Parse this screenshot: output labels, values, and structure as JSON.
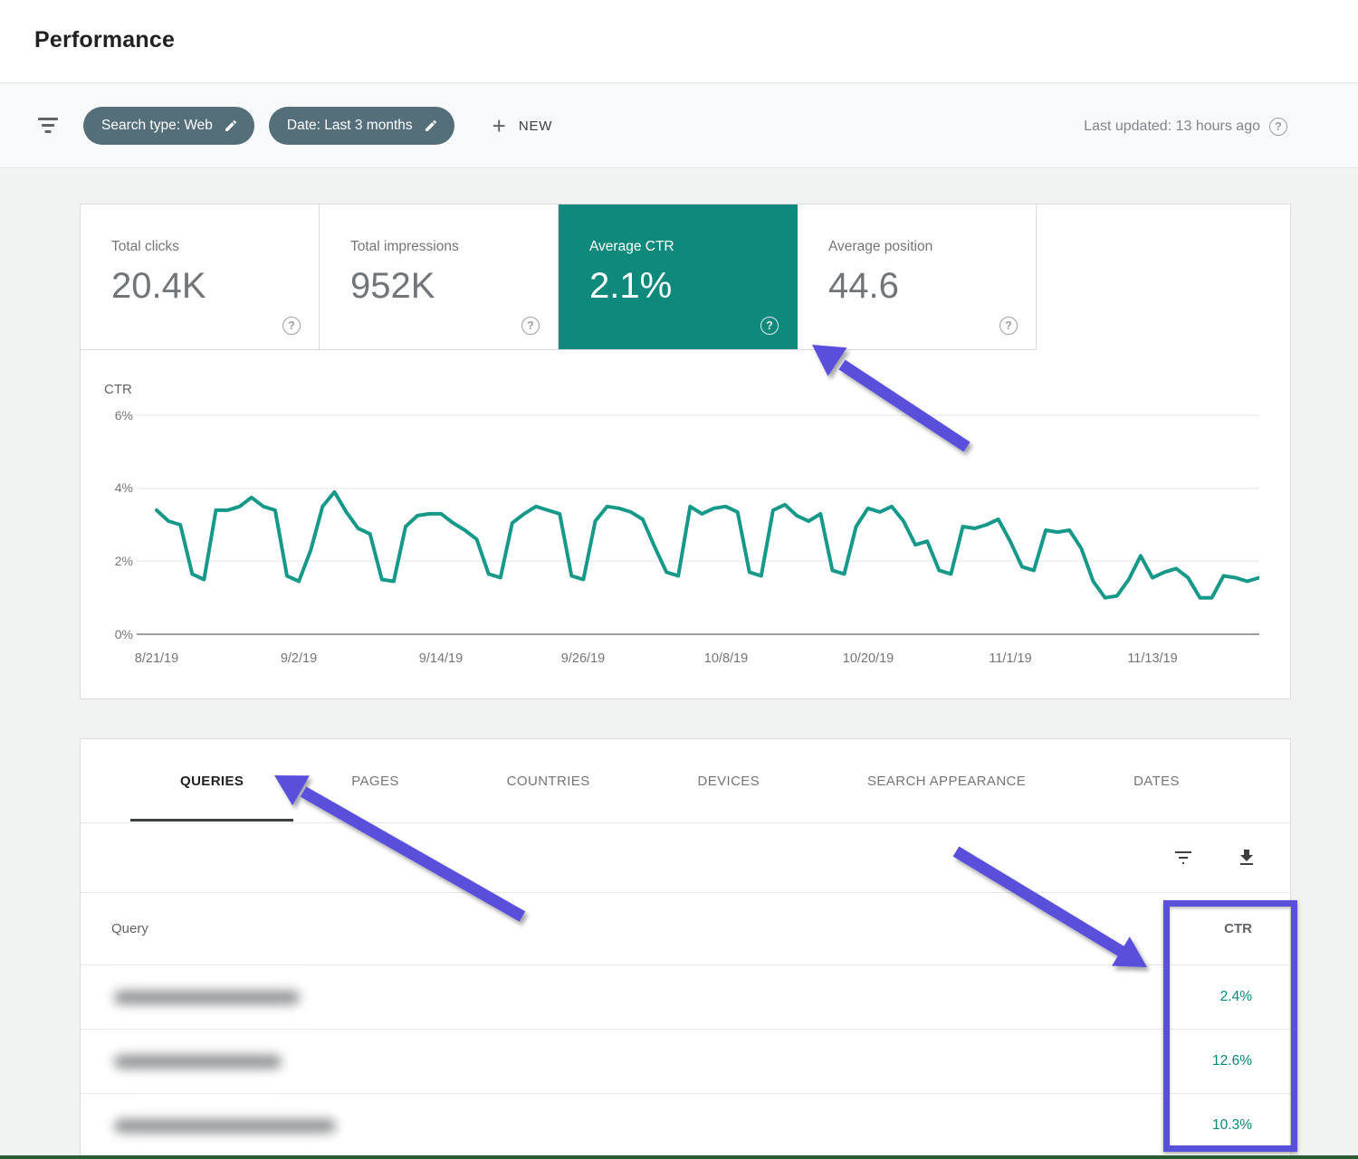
{
  "page": {
    "title": "Performance"
  },
  "filter_bar": {
    "filter_icon": "filter-list-icon",
    "chips": [
      {
        "label": "Search type: Web",
        "edit_icon": "pencil-icon"
      },
      {
        "label": "Date: Last 3 months",
        "edit_icon": "pencil-icon"
      }
    ],
    "new_button": {
      "plus": "+",
      "label": "NEW"
    },
    "last_updated": "Last updated: 13 hours ago",
    "help_icon": "?"
  },
  "metrics": [
    {
      "label": "Total clicks",
      "value": "20.4K",
      "selected": false
    },
    {
      "label": "Total impressions",
      "value": "952K",
      "selected": false
    },
    {
      "label": "Average CTR",
      "value": "2.1%",
      "selected": true
    },
    {
      "label": "Average position",
      "value": "44.6",
      "selected": false
    }
  ],
  "chart_data": {
    "type": "line",
    "title": "CTR",
    "ylabel": "CTR",
    "ylim": [
      0,
      6
    ],
    "yticks": [
      "6%",
      "4%",
      "2%",
      "0%"
    ],
    "grid": "horizontal",
    "legend_position": "none",
    "x_start": "8/21/19",
    "x_end": "11/18/19",
    "xticklabels": [
      "8/21/19",
      "9/2/19",
      "9/14/19",
      "9/26/19",
      "10/8/19",
      "10/20/19",
      "11/1/19",
      "11/13/19"
    ],
    "series": [
      {
        "name": "CTR",
        "unit": "%",
        "color": "#17998a",
        "values": [
          3.4,
          3.1,
          3.0,
          1.65,
          1.5,
          3.4,
          3.4,
          3.5,
          3.75,
          3.5,
          3.4,
          1.6,
          1.45,
          2.3,
          3.5,
          3.9,
          3.35,
          2.9,
          2.75,
          1.5,
          1.45,
          2.95,
          3.25,
          3.3,
          3.3,
          3.05,
          2.85,
          2.6,
          1.65,
          1.55,
          3.05,
          3.3,
          3.5,
          3.4,
          3.3,
          1.6,
          1.5,
          3.1,
          3.5,
          3.45,
          3.35,
          3.15,
          2.4,
          1.7,
          1.6,
          3.5,
          3.3,
          3.45,
          3.5,
          3.35,
          1.7,
          1.6,
          3.4,
          3.55,
          3.25,
          3.1,
          3.3,
          1.75,
          1.65,
          2.95,
          3.45,
          3.35,
          3.5,
          3.1,
          2.45,
          2.55,
          1.75,
          1.65,
          2.95,
          2.9,
          3.0,
          3.15,
          2.55,
          1.85,
          1.75,
          2.85,
          2.8,
          2.85,
          2.35,
          1.45,
          1.0,
          1.05,
          1.5,
          2.15,
          1.55,
          1.7,
          1.8,
          1.55,
          1.0,
          1.0,
          1.6,
          1.55,
          1.45,
          1.55
        ]
      }
    ]
  },
  "table": {
    "tabs": [
      {
        "label": "QUERIES",
        "selected": true
      },
      {
        "label": "PAGES",
        "selected": false
      },
      {
        "label": "COUNTRIES",
        "selected": false
      },
      {
        "label": "DEVICES",
        "selected": false
      },
      {
        "label": "SEARCH APPEARANCE",
        "selected": false
      },
      {
        "label": "DATES",
        "selected": false
      }
    ],
    "toolbar_icons": [
      "filter-list-icon",
      "download-icon"
    ],
    "columns": {
      "query": "Query",
      "ctr": "CTR"
    },
    "rows": [
      {
        "query_blurred": true,
        "ctr": "2.4%"
      },
      {
        "query_blurred": true,
        "ctr": "12.6%"
      },
      {
        "query_blurred": true,
        "ctr": "10.3%"
      }
    ]
  },
  "annotations": {
    "arrow_count": 3,
    "highlighted_column": "CTR"
  },
  "colors": {
    "teal": "#0f897b",
    "teal-text": "#00897b",
    "chip": "#546e7a",
    "purple": "#5a4fdb",
    "line": "#17998a",
    "green-bar": "#295c33"
  }
}
